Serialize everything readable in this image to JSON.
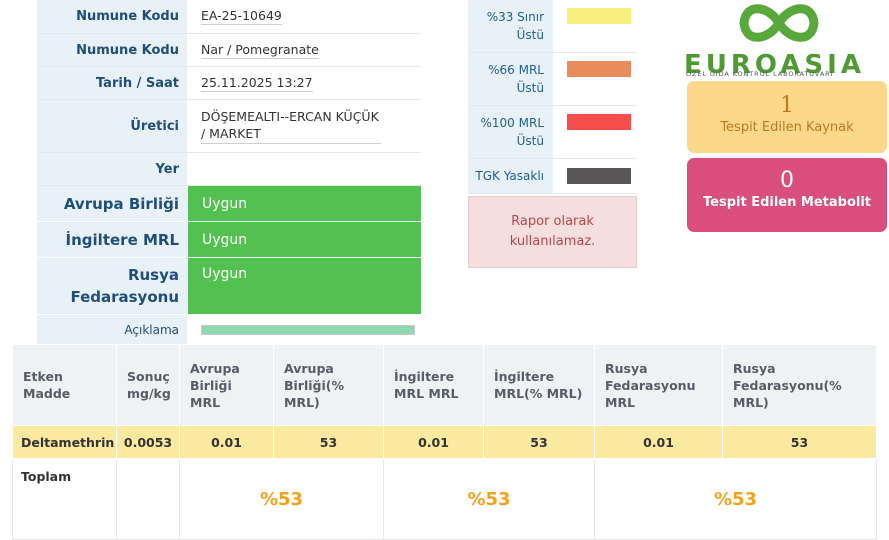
{
  "sample": {
    "code_label": "Numune Kodu",
    "code_value": "EA-25-10649",
    "name_label": "Numune Kodu",
    "name_value": "Nar / Pomegranate",
    "datetime_label": "Tarih / Saat",
    "datetime_value": "25.11.2025 13:27",
    "producer_label": "Üretici",
    "producer_value": "DÖŞEMEALTI--ERCAN KÜÇÜK / MARKET",
    "place_label": "Yer",
    "place_value": "",
    "eu_label": "Avrupa Birliği",
    "eu_value": "Uygun",
    "uk_label": "İngiltere MRL",
    "uk_value": "Uygun",
    "ru_label": "Rusya Fedarasyonu",
    "ru_value": "Uygun",
    "desc_label": "Açıklama"
  },
  "legend": {
    "items": [
      {
        "label": "%33 Sınır Üstü",
        "color": "#f7ee7b"
      },
      {
        "label": "%66 MRL Üstü",
        "color": "#e88c5c"
      },
      {
        "label": "%100 MRL Üstü",
        "color": "#f64d4d"
      },
      {
        "label": "TGK Yasaklı",
        "color": "#5b5658"
      }
    ],
    "notice": "Rapor olarak kullanılamaz."
  },
  "logo": {
    "word": "EUROASIA",
    "sub": "ÖZEL GIDA KONTROL LABORATUVARI",
    "icon": "infinity-logo-icon"
  },
  "stats": {
    "sources_value": "1",
    "sources_label": "Tespit Edilen Kaynak",
    "metabolite_value": "0",
    "metabolite_label": "Tespit Edilen Metabolit"
  },
  "table": {
    "headers": [
      "Etken Madde",
      "Sonuç mg/kg",
      "Avrupa Birliği MRL",
      "Avrupa Birliği(% MRL)",
      "İngiltere MRL MRL",
      "İngiltere MRL(% MRL)",
      "Rusya Fedarasyonu MRL",
      "Rusya Fedarasyonu(% MRL)"
    ],
    "rows": [
      [
        "Deltamethrin",
        "0.0053",
        "0.01",
        "53",
        "0.01",
        "53",
        "0.01",
        "53"
      ]
    ],
    "total_label": "Toplam",
    "totals": [
      "%53",
      "%53",
      "%53"
    ]
  }
}
